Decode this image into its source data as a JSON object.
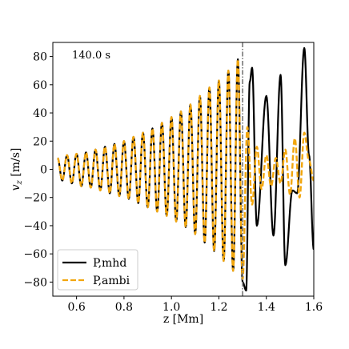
{
  "chart_data": {
    "type": "line",
    "title": "",
    "xlabel": "z [Mm]",
    "ylabel": "v_z [m/s]",
    "xlim": [
      0.5,
      1.6
    ],
    "ylim": [
      -90,
      90
    ],
    "xticks": [
      0.6,
      0.8,
      1.0,
      1.2,
      1.4,
      1.6
    ],
    "yticks": [
      -80,
      -60,
      -40,
      -20,
      0,
      20,
      40,
      60,
      80
    ],
    "xtick_labels": [
      "0.6",
      "0.8",
      "1.0",
      "1.2",
      "1.4",
      "1.6"
    ],
    "ytick_labels": [
      "−80",
      "−60",
      "−40",
      "−20",
      "0",
      "20",
      "40",
      "60",
      "80"
    ],
    "annotation": "140.0 s",
    "vline_x": 1.3,
    "grid": false,
    "legend_position": "lower-left",
    "series": [
      {
        "name": "P,mhd",
        "color": "#000000",
        "style": "solid",
        "x": [
          0.52,
          0.54,
          0.56,
          0.58,
          0.6,
          0.62,
          0.64,
          0.66,
          0.68,
          0.7,
          0.72,
          0.74,
          0.76,
          0.78,
          0.8,
          0.82,
          0.84,
          0.86,
          0.88,
          0.9,
          0.92,
          0.94,
          0.96,
          0.98,
          1.0,
          1.02,
          1.04,
          1.06,
          1.08,
          1.1,
          1.12,
          1.14,
          1.16,
          1.18,
          1.2,
          1.22,
          1.24,
          1.26,
          1.28,
          1.3,
          1.315,
          1.33,
          1.34,
          1.36,
          1.4,
          1.43,
          1.46,
          1.48,
          1.51,
          1.53,
          1.56,
          1.58,
          1.6
        ],
        "y": [
          8,
          -8,
          10,
          -10,
          11,
          -12,
          12,
          -13,
          14,
          -15,
          16,
          -17,
          18,
          -19,
          20,
          -21,
          23,
          -24,
          26,
          -27,
          29,
          -30,
          33,
          -33,
          37,
          -37,
          41,
          -41,
          46,
          -46,
          52,
          -52,
          58,
          -58,
          63,
          -65,
          70,
          -72,
          78,
          -80,
          -86,
          62,
          72,
          -40,
          52,
          -47,
          67,
          -68,
          -15,
          -17,
          86,
          10,
          -57
        ]
      },
      {
        "name": "P,ambi",
        "color": "#f2a60d",
        "style": "dashed",
        "x": [
          0.52,
          0.54,
          0.56,
          0.58,
          0.6,
          0.62,
          0.64,
          0.66,
          0.68,
          0.7,
          0.72,
          0.74,
          0.76,
          0.78,
          0.8,
          0.82,
          0.84,
          0.86,
          0.88,
          0.9,
          0.92,
          0.94,
          0.96,
          0.98,
          1.0,
          1.02,
          1.04,
          1.06,
          1.08,
          1.1,
          1.12,
          1.14,
          1.16,
          1.18,
          1.2,
          1.22,
          1.24,
          1.26,
          1.28,
          1.3,
          1.32,
          1.34,
          1.36,
          1.38,
          1.4,
          1.42,
          1.44,
          1.46,
          1.48,
          1.5,
          1.52,
          1.54,
          1.56,
          1.58,
          1.6
        ],
        "y": [
          8,
          -8,
          10,
          -10,
          11,
          -12,
          12,
          -13,
          14,
          -15,
          16,
          -17,
          18,
          -19,
          20,
          -21,
          23,
          -24,
          26,
          -27,
          29,
          -30,
          33,
          -33,
          37,
          -37,
          41,
          -41,
          46,
          -46,
          52,
          -52,
          58,
          -58,
          63,
          -65,
          70,
          -72,
          78,
          -78,
          30,
          -25,
          16,
          -14,
          10,
          -12,
          8,
          -10,
          14,
          -18,
          22,
          -20,
          26,
          6,
          -8
        ]
      }
    ]
  }
}
